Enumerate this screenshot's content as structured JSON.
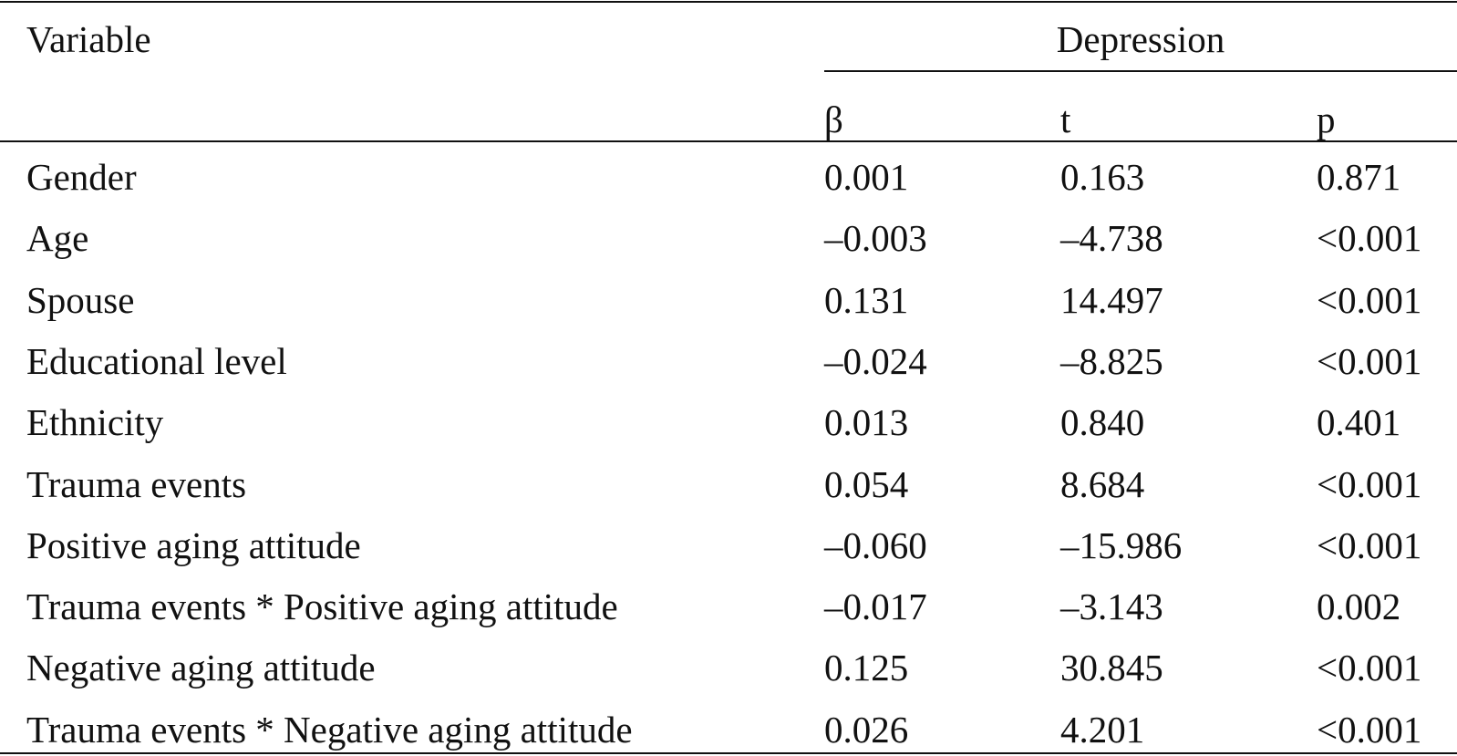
{
  "header": {
    "variable": "Variable",
    "group": "Depression",
    "columns": [
      "β",
      "t",
      "p"
    ]
  },
  "rows": [
    [
      "Gender",
      "0.001",
      "0.163",
      "0.871"
    ],
    [
      "Age",
      "–0.003",
      "–4.738",
      "<0.001"
    ],
    [
      "Spouse",
      "0.131",
      "14.497",
      "<0.001"
    ],
    [
      "Educational level",
      "–0.024",
      "–8.825",
      "<0.001"
    ],
    [
      "Ethnicity",
      "0.013",
      "0.840",
      "0.401"
    ],
    [
      "Trauma events",
      "0.054",
      "8.684",
      "<0.001"
    ],
    [
      "Positive aging attitude",
      "–0.060",
      "–15.986",
      "<0.001"
    ],
    [
      "Trauma events * Positive aging attitude",
      "–0.017",
      "–3.143",
      "0.002"
    ],
    [
      "Negative aging attitude",
      "0.125",
      "30.845",
      "<0.001"
    ],
    [
      "Trauma events * Negative aging attitude",
      "0.026",
      "4.201",
      "<0.001"
    ]
  ]
}
